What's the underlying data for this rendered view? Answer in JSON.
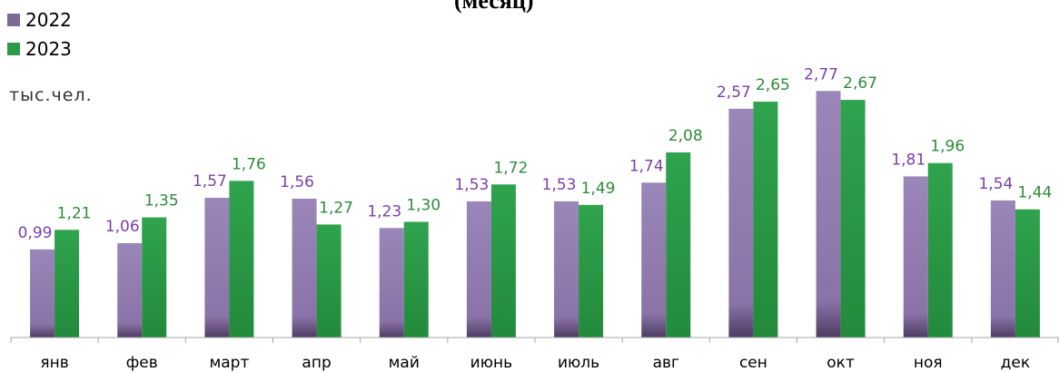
{
  "chart_data": {
    "type": "bar",
    "title": "(месяц)",
    "ylabel": "тыс.чел.",
    "categories": [
      "янв",
      "фев",
      "март",
      "апр",
      "май",
      "июнь",
      "июль",
      "авг",
      "сен",
      "окт",
      "ноя",
      "дек"
    ],
    "series": [
      {
        "name": "2022",
        "color": "#8a73a8",
        "values": [
          0.99,
          1.06,
          1.57,
          1.56,
          1.23,
          1.53,
          1.53,
          1.74,
          2.57,
          2.77,
          1.81,
          1.54
        ],
        "labels": [
          "0,99",
          "1,06",
          "1,57",
          "1,56",
          "1,23",
          "1,53",
          "1,53",
          "1,74",
          "2,57",
          "2,77",
          "1,81",
          "1,54"
        ]
      },
      {
        "name": "2023",
        "color": "#2c9a48",
        "values": [
          1.21,
          1.35,
          1.76,
          1.27,
          1.3,
          1.72,
          1.49,
          2.08,
          2.65,
          2.67,
          1.96,
          1.44
        ],
        "labels": [
          "1,21",
          "1,35",
          "1,76",
          "1,27",
          "1,30",
          "1,72",
          "1,49",
          "2,08",
          "2,65",
          "2,67",
          "1,96",
          "1,44"
        ]
      }
    ],
    "label_colors": {
      "2022": "#7a3fa8",
      "2023": "#2e8b3a"
    },
    "ylim": [
      0,
      3
    ],
    "grid": false,
    "legend_position": "top-left"
  }
}
